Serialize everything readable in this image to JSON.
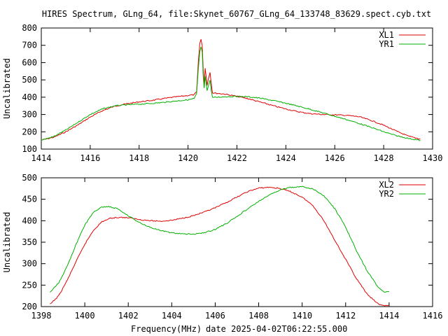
{
  "title": "HIRES Spectrum, GLng_64, file:Skynet_60767_GLng_64_133748_83629.spect.cyb.txt",
  "footer": {
    "xlabel": "Frequency(MHz)",
    "date_text": "date 2025-04-02T06:22:55.000"
  },
  "colors": {
    "red": "#e00000",
    "green": "#00b000"
  },
  "chart_data": [
    {
      "type": "line",
      "ylabel": "Uncalibrated",
      "xlim": [
        1414,
        1430
      ],
      "ylim": [
        100,
        800
      ],
      "xticks": [
        "1414",
        "1416",
        "1418",
        "1420",
        "1422",
        "1424",
        "1426",
        "1428",
        "1430"
      ],
      "yticks": [
        "100",
        "200",
        "300",
        "400",
        "500",
        "600",
        "700",
        "800"
      ],
      "legend_position": "top-right",
      "series": [
        {
          "name": "XL1",
          "color": "#e00000",
          "points": [
            [
              1414.0,
              152
            ],
            [
              1414.5,
              168
            ],
            [
              1415.0,
              200
            ],
            [
              1415.5,
              240
            ],
            [
              1416.0,
              285
            ],
            [
              1416.5,
              322
            ],
            [
              1417.0,
              348
            ],
            [
              1417.5,
              362
            ],
            [
              1418.0,
              373
            ],
            [
              1418.5,
              381
            ],
            [
              1419.0,
              392
            ],
            [
              1419.5,
              402
            ],
            [
              1420.0,
              410
            ],
            [
              1420.25,
              414
            ],
            [
              1420.35,
              430
            ],
            [
              1420.42,
              600
            ],
            [
              1420.48,
              710
            ],
            [
              1420.53,
              735
            ],
            [
              1420.58,
              700
            ],
            [
              1420.62,
              560
            ],
            [
              1420.66,
              470
            ],
            [
              1420.7,
              570
            ],
            [
              1420.74,
              520
            ],
            [
              1420.78,
              470
            ],
            [
              1420.84,
              510
            ],
            [
              1420.9,
              545
            ],
            [
              1420.95,
              480
            ],
            [
              1421.0,
              425
            ],
            [
              1421.5,
              418
            ],
            [
              1422.0,
              405
            ],
            [
              1422.5,
              390
            ],
            [
              1423.0,
              370
            ],
            [
              1423.5,
              350
            ],
            [
              1424.0,
              332
            ],
            [
              1424.5,
              316
            ],
            [
              1425.0,
              305
            ],
            [
              1425.5,
              300
            ],
            [
              1426.0,
              298
            ],
            [
              1426.5,
              295
            ],
            [
              1427.0,
              287
            ],
            [
              1427.5,
              265
            ],
            [
              1428.0,
              238
            ],
            [
              1428.5,
              205
            ],
            [
              1429.0,
              175
            ],
            [
              1429.5,
              158
            ]
          ]
        },
        {
          "name": "YR1",
          "color": "#00b000",
          "points": [
            [
              1414.0,
              152
            ],
            [
              1414.5,
              172
            ],
            [
              1415.0,
              210
            ],
            [
              1415.5,
              255
            ],
            [
              1416.0,
              300
            ],
            [
              1416.5,
              332
            ],
            [
              1417.0,
              350
            ],
            [
              1417.5,
              356
            ],
            [
              1418.0,
              360
            ],
            [
              1418.5,
              364
            ],
            [
              1419.0,
              370
            ],
            [
              1419.5,
              378
            ],
            [
              1420.0,
              385
            ],
            [
              1420.25,
              392
            ],
            [
              1420.35,
              420
            ],
            [
              1420.42,
              560
            ],
            [
              1420.48,
              660
            ],
            [
              1420.53,
              690
            ],
            [
              1420.58,
              660
            ],
            [
              1420.62,
              520
            ],
            [
              1420.66,
              450
            ],
            [
              1420.7,
              520
            ],
            [
              1420.74,
              480
            ],
            [
              1420.78,
              440
            ],
            [
              1420.84,
              470
            ],
            [
              1420.9,
              500
            ],
            [
              1420.95,
              440
            ],
            [
              1421.0,
              398
            ],
            [
              1421.5,
              403
            ],
            [
              1422.0,
              405
            ],
            [
              1422.5,
              402
            ],
            [
              1423.0,
              393
            ],
            [
              1423.5,
              380
            ],
            [
              1424.0,
              365
            ],
            [
              1424.5,
              348
            ],
            [
              1425.0,
              330
            ],
            [
              1425.5,
              310
            ],
            [
              1426.0,
              290
            ],
            [
              1426.5,
              270
            ],
            [
              1427.0,
              248
            ],
            [
              1427.5,
              225
            ],
            [
              1428.0,
              200
            ],
            [
              1428.5,
              178
            ],
            [
              1429.0,
              162
            ],
            [
              1429.5,
              150
            ]
          ]
        }
      ]
    },
    {
      "type": "line",
      "ylabel": "Uncalibrated",
      "xlim": [
        1398,
        1416
      ],
      "ylim": [
        200,
        500
      ],
      "xticks": [
        "1398",
        "1400",
        "1402",
        "1404",
        "1406",
        "1408",
        "1410",
        "1412",
        "1414",
        "1416"
      ],
      "yticks": [
        "200",
        "250",
        "300",
        "350",
        "400",
        "450",
        "500"
      ],
      "legend_position": "top-right",
      "series": [
        {
          "name": "XL2",
          "color": "#e00000",
          "points": [
            [
              1398.4,
              205
            ],
            [
              1398.8,
              225
            ],
            [
              1399.2,
              262
            ],
            [
              1399.6,
              305
            ],
            [
              1400.0,
              345
            ],
            [
              1400.4,
              378
            ],
            [
              1400.8,
              398
            ],
            [
              1401.2,
              406
            ],
            [
              1401.6,
              408
            ],
            [
              1402.0,
              407
            ],
            [
              1402.5,
              403
            ],
            [
              1403.0,
              400
            ],
            [
              1403.5,
              399
            ],
            [
              1404.0,
              401
            ],
            [
              1404.5,
              406
            ],
            [
              1405.0,
              412
            ],
            [
              1405.5,
              420
            ],
            [
              1406.0,
              430
            ],
            [
              1406.5,
              442
            ],
            [
              1407.0,
              455
            ],
            [
              1407.5,
              468
            ],
            [
              1408.0,
              476
            ],
            [
              1408.5,
              478
            ],
            [
              1409.0,
              475
            ],
            [
              1409.5,
              467
            ],
            [
              1410.0,
              455
            ],
            [
              1410.5,
              435
            ],
            [
              1411.0,
              400
            ],
            [
              1411.5,
              355
            ],
            [
              1412.0,
              310
            ],
            [
              1412.5,
              265
            ],
            [
              1413.0,
              228
            ],
            [
              1413.5,
              206
            ],
            [
              1413.8,
              202
            ],
            [
              1414.0,
              203
            ]
          ]
        },
        {
          "name": "YR2",
          "color": "#00b000",
          "points": [
            [
              1398.4,
              233
            ],
            [
              1398.8,
              255
            ],
            [
              1399.2,
              295
            ],
            [
              1399.6,
              345
            ],
            [
              1400.0,
              390
            ],
            [
              1400.4,
              420
            ],
            [
              1400.8,
              432
            ],
            [
              1401.1,
              433
            ],
            [
              1401.5,
              428
            ],
            [
              1402.0,
              412
            ],
            [
              1402.5,
              396
            ],
            [
              1403.0,
              385
            ],
            [
              1403.5,
              377
            ],
            [
              1404.0,
              372
            ],
            [
              1404.5,
              369
            ],
            [
              1405.0,
              369
            ],
            [
              1405.5,
              372
            ],
            [
              1406.0,
              380
            ],
            [
              1406.5,
              393
            ],
            [
              1407.0,
              410
            ],
            [
              1407.5,
              428
            ],
            [
              1408.0,
              445
            ],
            [
              1408.5,
              460
            ],
            [
              1409.0,
              472
            ],
            [
              1409.5,
              478
            ],
            [
              1410.0,
              479
            ],
            [
              1410.5,
              474
            ],
            [
              1411.0,
              458
            ],
            [
              1411.5,
              428
            ],
            [
              1412.0,
              385
            ],
            [
              1412.5,
              330
            ],
            [
              1413.0,
              282
            ],
            [
              1413.5,
              245
            ],
            [
              1413.8,
              233
            ],
            [
              1414.0,
              235
            ]
          ]
        }
      ]
    }
  ]
}
